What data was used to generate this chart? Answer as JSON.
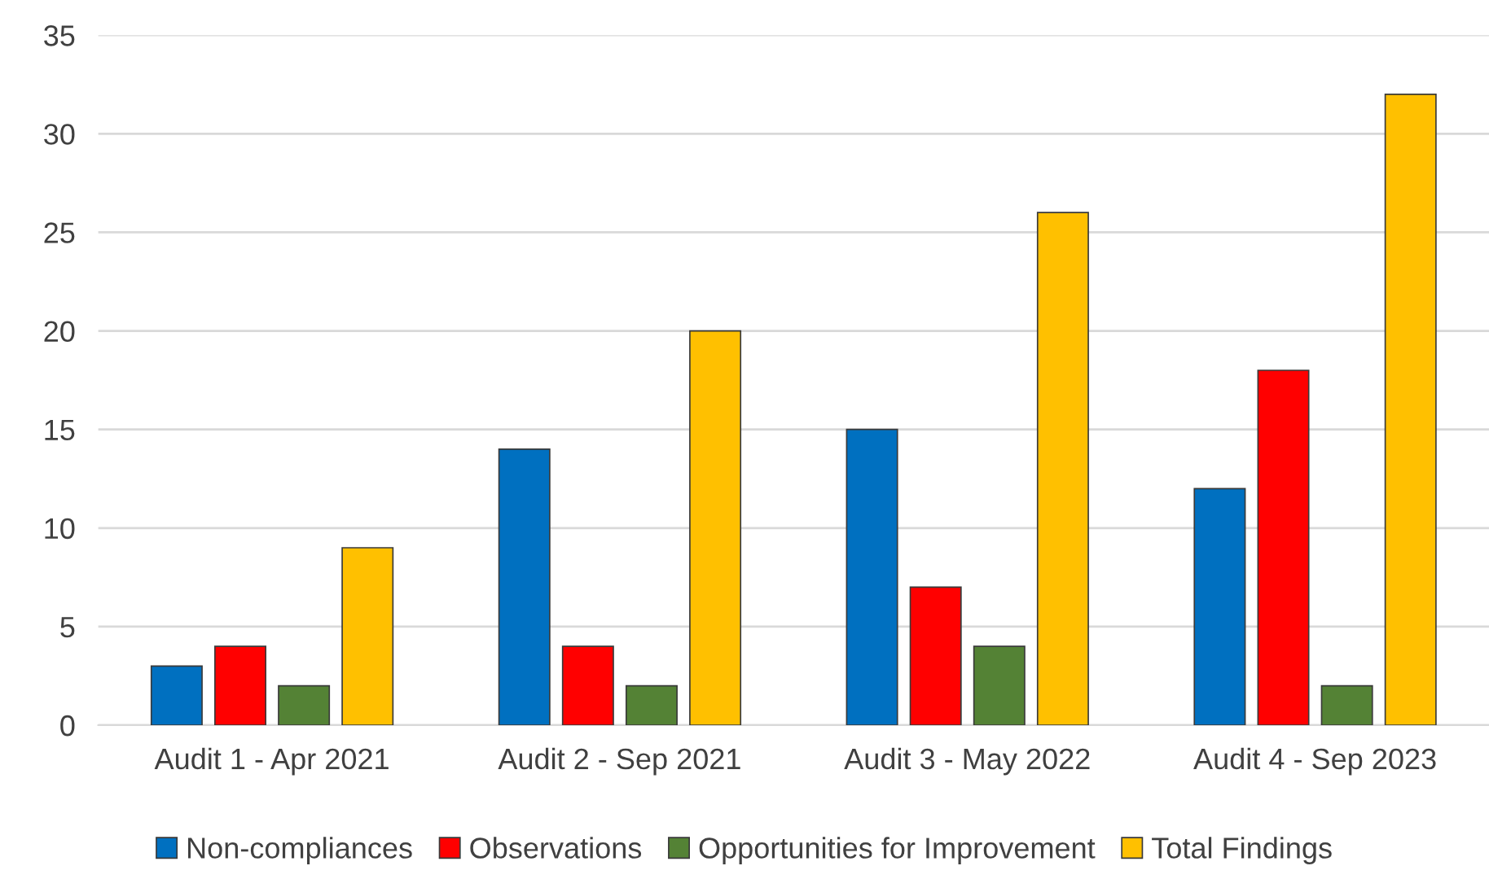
{
  "chart_data": {
    "type": "bar",
    "categories": [
      "Audit 1 - Apr 2021",
      "Audit 2 - Sep 2021",
      "Audit 3 - May 2022",
      "Audit 4 - Sep 2023"
    ],
    "series": [
      {
        "name": "Non-compliances",
        "color": "#0070c0",
        "values": [
          3,
          14,
          15,
          12
        ]
      },
      {
        "name": "Observations",
        "color": "#ff0000",
        "values": [
          4,
          4,
          7,
          18
        ]
      },
      {
        "name": "Opportunities for Improvement",
        "color": "#548235",
        "values": [
          2,
          2,
          4,
          2
        ]
      },
      {
        "name": "Total Findings",
        "color": "#ffc000",
        "values": [
          9,
          20,
          26,
          32
        ]
      }
    ],
    "ylim": [
      0,
      35
    ],
    "yticks": [
      0,
      5,
      10,
      15,
      20,
      25,
      30,
      35
    ],
    "grid": "y",
    "legend": "bottom"
  }
}
